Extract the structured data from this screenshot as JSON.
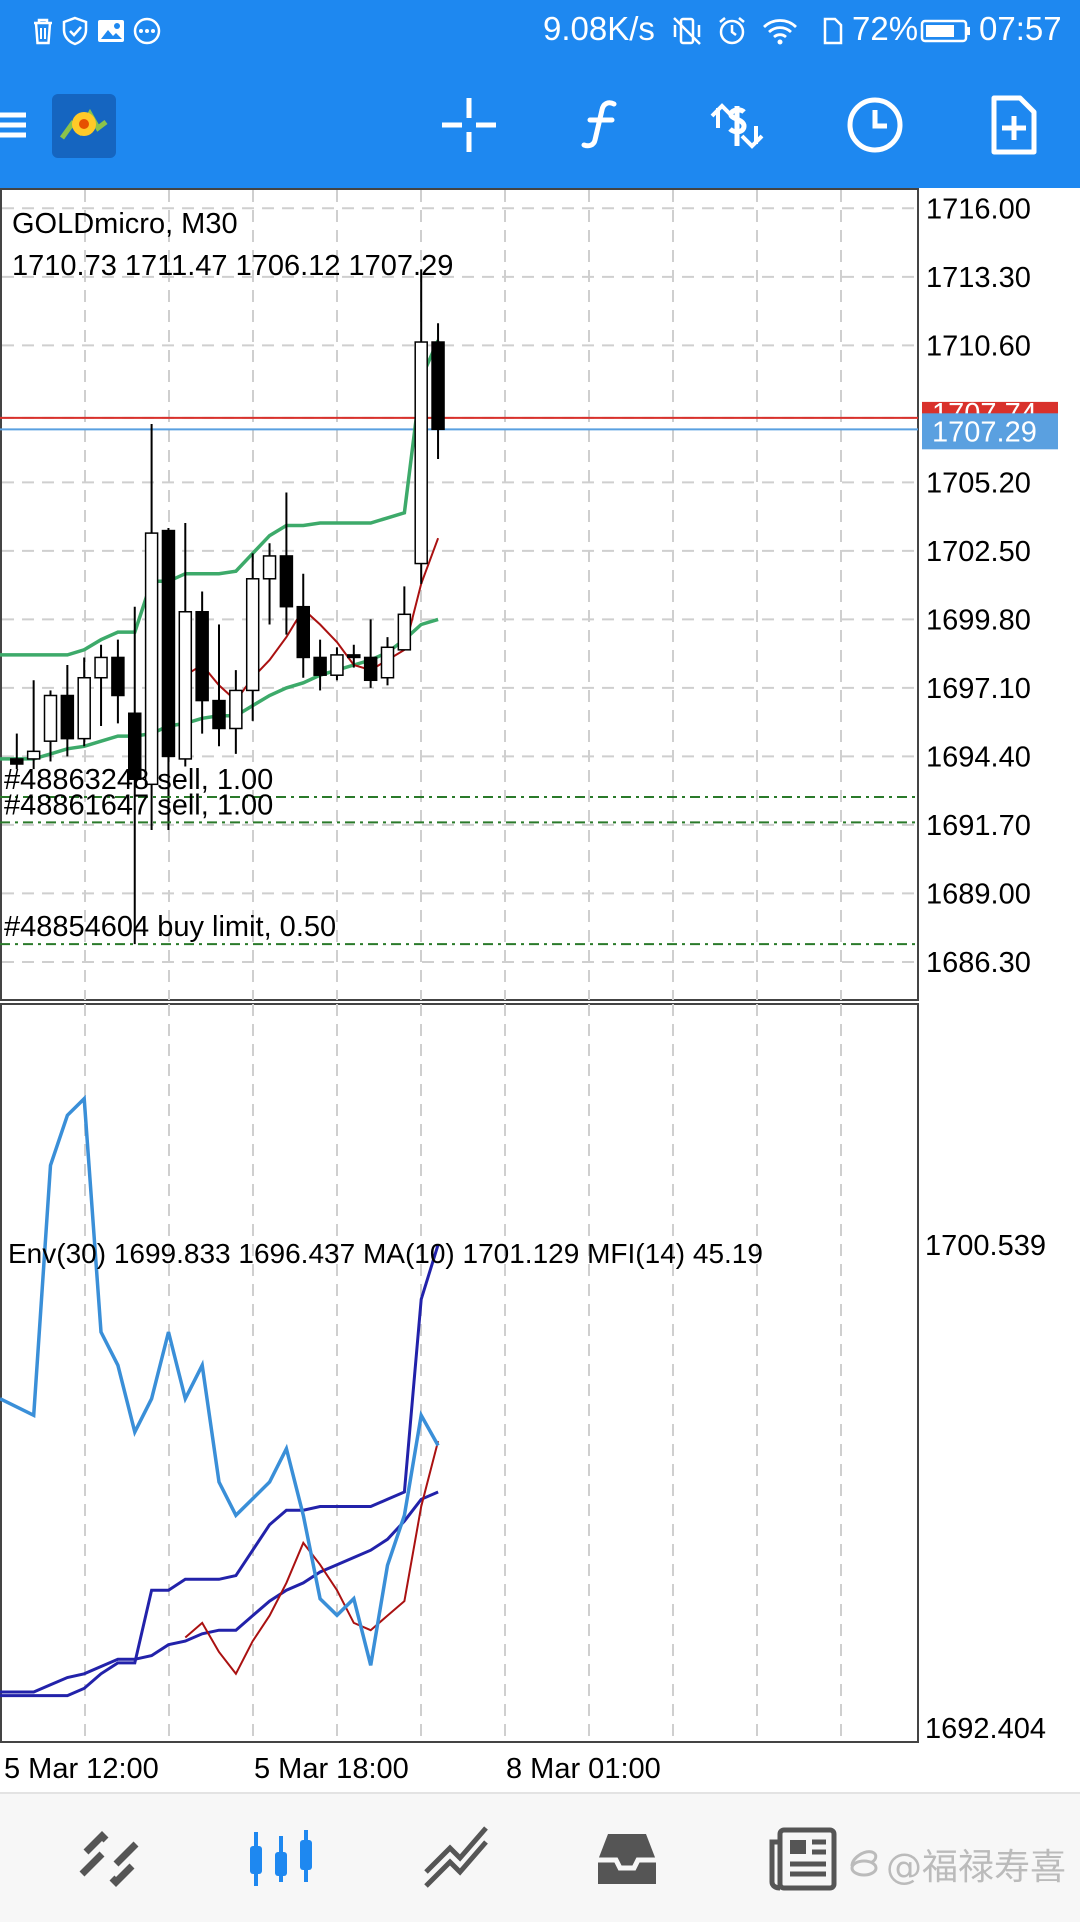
{
  "status_bar": {
    "speed": "9.08K/s",
    "battery": "72%",
    "time": "07:57"
  },
  "chart": {
    "symbol_timeframe": "GOLDmicro, M30",
    "ohlc": "1710.73 1711.47 1706.12 1707.29",
    "price_axis": [
      "1716.00",
      "1713.30",
      "1710.60",
      "1707.74",
      "1705.20",
      "1702.50",
      "1699.80",
      "1697.10",
      "1694.40",
      "1691.70",
      "1689.00",
      "1686.30"
    ],
    "current_price": "1707.29",
    "red_line_price": "1707.74",
    "orders": [
      {
        "label": "#48863248 sell, 1.00"
      },
      {
        "label": "#48861647 sell, 1.00"
      },
      {
        "label": "#48854604 buy limit, 0.50"
      }
    ],
    "indicator_header": "Env(30) 1699.833 1696.437 MA(10) 1701.129 MFI(14) 45.19",
    "indicator_axis_top": "1700.539",
    "indicator_axis_bottom": "1692.404",
    "time_axis": [
      "5 Mar 12:00",
      "5 Mar 18:00",
      "8 Mar 01:00"
    ],
    "colors": {
      "bull": "#ffffff",
      "bear": "#000000",
      "envelope": "#3daa6a",
      "ma": "#aa1111",
      "mfi": "#3a8fd8",
      "env_sub": "#2222aa",
      "ask_line": "#d9312b",
      "bid_line": "#5aa0e0",
      "order_line": "#2a7a2a"
    }
  },
  "watermark": "@福禄寿喜",
  "icons": {
    "status": [
      "trash-icon",
      "shield-icon",
      "image-icon",
      "more-icon",
      "vibrate-icon",
      "alarm-icon",
      "wifi-icon",
      "sim-icon",
      "battery-icon"
    ],
    "toolbar": [
      "menu-icon",
      "metatrader-logo",
      "crosshair-icon",
      "indicator-f-icon",
      "symbols-icon",
      "clock-icon",
      "new-order-icon"
    ],
    "nav": [
      "quotes-icon",
      "chart-icon",
      "trade-icon",
      "history-icon",
      "news-icon"
    ]
  },
  "chart_data": {
    "type": "candlestick",
    "timeframe": "M30",
    "candles": [
      {
        "o": 1694.3,
        "h": 1695.3,
        "l": 1693.9,
        "c": 1694.1
      },
      {
        "o": 1694.3,
        "h": 1697.4,
        "l": 1693.9,
        "c": 1694.6
      },
      {
        "o": 1695.0,
        "h": 1697.0,
        "l": 1694.2,
        "c": 1696.8
      },
      {
        "o": 1696.8,
        "h": 1698.0,
        "l": 1694.4,
        "c": 1695.1
      },
      {
        "o": 1695.1,
        "h": 1698.3,
        "l": 1694.8,
        "c": 1697.5
      },
      {
        "o": 1697.5,
        "h": 1698.8,
        "l": 1695.6,
        "c": 1698.3
      },
      {
        "o": 1698.3,
        "h": 1699.0,
        "l": 1695.7,
        "c": 1696.8
      },
      {
        "o": 1696.1,
        "h": 1700.3,
        "l": 1687.0,
        "c": 1693.5
      },
      {
        "o": 1693.3,
        "h": 1707.5,
        "l": 1691.5,
        "c": 1703.2
      },
      {
        "o": 1703.3,
        "h": 1703.4,
        "l": 1691.5,
        "c": 1694.4
      },
      {
        "o": 1694.3,
        "h": 1703.6,
        "l": 1694.0,
        "c": 1700.1
      },
      {
        "o": 1700.1,
        "h": 1700.9,
        "l": 1695.3,
        "c": 1696.6
      },
      {
        "o": 1696.6,
        "h": 1699.6,
        "l": 1694.8,
        "c": 1695.5
      },
      {
        "o": 1695.5,
        "h": 1697.8,
        "l": 1694.5,
        "c": 1697.0
      },
      {
        "o": 1697.0,
        "h": 1702.4,
        "l": 1695.8,
        "c": 1701.4
      },
      {
        "o": 1701.4,
        "h": 1702.8,
        "l": 1699.6,
        "c": 1702.3
      },
      {
        "o": 1702.3,
        "h": 1704.8,
        "l": 1699.2,
        "c": 1700.3
      },
      {
        "o": 1700.3,
        "h": 1701.6,
        "l": 1697.5,
        "c": 1698.3
      },
      {
        "o": 1698.3,
        "h": 1699.0,
        "l": 1697.0,
        "c": 1697.6
      },
      {
        "o": 1697.6,
        "h": 1698.7,
        "l": 1697.4,
        "c": 1698.4
      },
      {
        "o": 1698.4,
        "h": 1698.8,
        "l": 1697.9,
        "c": 1698.3
      },
      {
        "o": 1698.3,
        "h": 1699.8,
        "l": 1697.1,
        "c": 1697.4
      },
      {
        "o": 1697.5,
        "h": 1699.1,
        "l": 1697.2,
        "c": 1698.7
      },
      {
        "o": 1698.6,
        "h": 1701.1,
        "l": 1698.6,
        "c": 1700.0
      },
      {
        "o": 1702.0,
        "h": 1713.6,
        "l": 1701.2,
        "c": 1710.73
      },
      {
        "o": 1710.73,
        "h": 1711.47,
        "l": 1706.12,
        "c": 1707.29
      }
    ],
    "envelope_upper": [
      1698.4,
      1698.4,
      1698.4,
      1698.4,
      1698.6,
      1699.0,
      1699.3,
      1699.3,
      1701.3,
      1701.3,
      1701.6,
      1701.6,
      1701.6,
      1701.7,
      1702.4,
      1703.1,
      1703.5,
      1703.5,
      1703.6,
      1703.6,
      1703.6,
      1703.6,
      1703.8,
      1704.0,
      1709.3,
      1710.8
    ],
    "ma10": [
      null,
      null,
      null,
      null,
      null,
      null,
      null,
      null,
      null,
      null,
      1697.6,
      1698.0,
      1697.2,
      1696.6,
      1697.5,
      1698.2,
      1699.1,
      1700.2,
      1699.6,
      1698.9,
      1698.0,
      1697.8,
      1698.2,
      1698.6,
      1701.2,
      1703.0
    ],
    "envelope_lower": [
      1694.3,
      1694.3,
      1694.5,
      1694.7,
      1694.8,
      1695.0,
      1695.2,
      1695.2,
      1695.3,
      1695.6,
      1695.7,
      1695.9,
      1696.0,
      1696.0,
      1696.4,
      1696.8,
      1697.1,
      1697.3,
      1697.6,
      1697.8,
      1698.0,
      1698.2,
      1698.5,
      1699.0,
      1699.6,
      1699.8
    ],
    "order_lines": [
      1692.8,
      1691.8,
      1687.0
    ],
    "ask": 1707.74,
    "bid": 1707.29,
    "y_range": [
      1684.8,
      1716.8
    ],
    "mfi": [
      48,
      47,
      62,
      65,
      66,
      52,
      50,
      46,
      48,
      52,
      48,
      50,
      43,
      41,
      42,
      43,
      45,
      41,
      36,
      35,
      36,
      32,
      38,
      41,
      47,
      45.19
    ],
    "mfi_range": [
      28,
      70
    ]
  }
}
